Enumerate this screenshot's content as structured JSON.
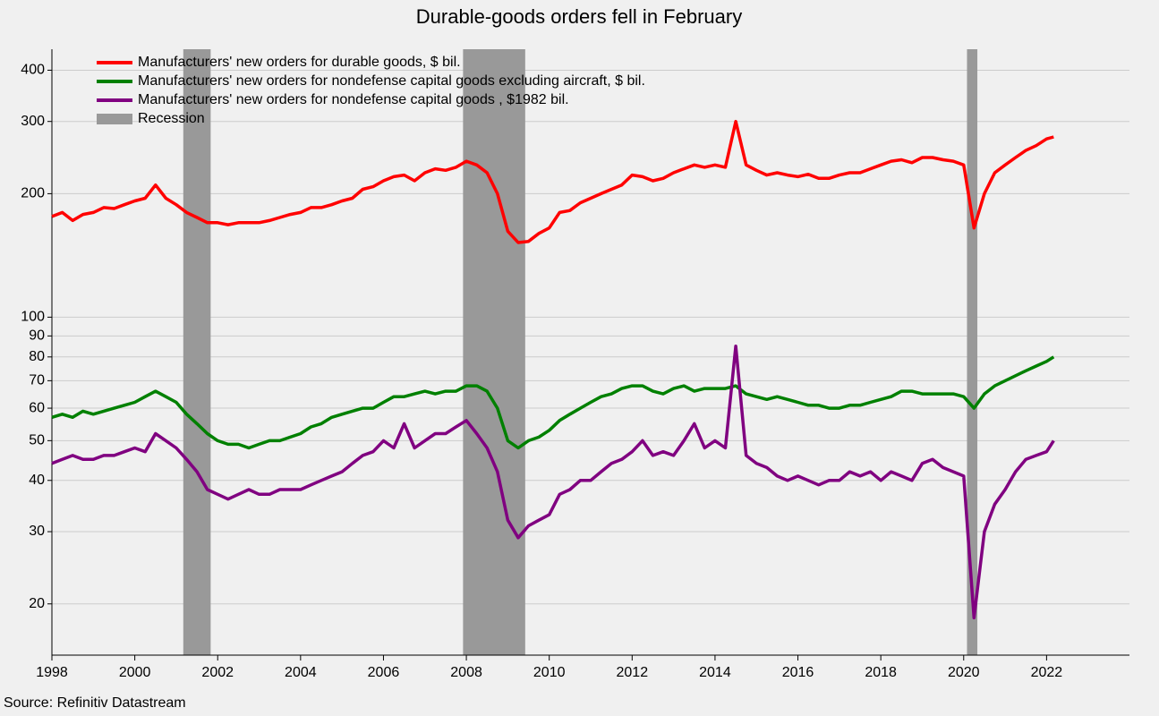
{
  "chart_data": {
    "type": "line",
    "title": "Durable-goods orders fell in February",
    "source": "Source: Refinitiv Datastream",
    "log_scale": true,
    "grid": true,
    "legend_position": "top-left",
    "xlim": [
      1998,
      2024
    ],
    "ylim": [
      15,
      450
    ],
    "xticks": [
      1998,
      2000,
      2002,
      2004,
      2006,
      2008,
      2010,
      2012,
      2014,
      2016,
      2018,
      2020,
      2022
    ],
    "yticks": [
      20,
      30,
      40,
      50,
      60,
      70,
      80,
      90,
      100,
      200,
      300,
      400
    ],
    "recession_label": "Recession",
    "recession_color": "#999999",
    "recessions": [
      [
        2001.17,
        2001.83
      ],
      [
        2007.92,
        2009.42
      ],
      [
        2020.08,
        2020.33
      ]
    ],
    "x": [
      1998,
      1998.25,
      1998.5,
      1998.75,
      1999,
      1999.25,
      1999.5,
      1999.75,
      2000,
      2000.25,
      2000.5,
      2000.75,
      2001,
      2001.25,
      2001.5,
      2001.75,
      2002,
      2002.25,
      2002.5,
      2002.75,
      2003,
      2003.25,
      2003.5,
      2003.75,
      2004,
      2004.25,
      2004.5,
      2004.75,
      2005,
      2005.25,
      2005.5,
      2005.75,
      2006,
      2006.25,
      2006.5,
      2006.75,
      2007,
      2007.25,
      2007.5,
      2007.75,
      2008,
      2008.25,
      2008.5,
      2008.75,
      2009,
      2009.25,
      2009.5,
      2009.75,
      2010,
      2010.25,
      2010.5,
      2010.75,
      2011,
      2011.25,
      2011.5,
      2011.75,
      2012,
      2012.25,
      2012.5,
      2012.75,
      2013,
      2013.25,
      2013.5,
      2013.75,
      2014,
      2014.25,
      2014.5,
      2014.75,
      2015,
      2015.25,
      2015.5,
      2015.75,
      2016,
      2016.25,
      2016.5,
      2016.75,
      2017,
      2017.25,
      2017.5,
      2017.75,
      2018,
      2018.25,
      2018.5,
      2018.75,
      2019,
      2019.25,
      2019.5,
      2019.75,
      2020,
      2020.25,
      2020.5,
      2020.75,
      2021,
      2021.25,
      2021.5,
      2021.75,
      2022,
      2022.17
    ],
    "series": [
      {
        "name": "Manufacturers' new orders for durable goods, $ bil.",
        "color": "#ff0000",
        "values": [
          176,
          180,
          172,
          178,
          180,
          185,
          184,
          188,
          192,
          195,
          210,
          195,
          188,
          180,
          175,
          170,
          170,
          168,
          170,
          170,
          170,
          172,
          175,
          178,
          180,
          185,
          185,
          188,
          192,
          195,
          205,
          208,
          215,
          220,
          222,
          215,
          225,
          230,
          228,
          232,
          240,
          235,
          225,
          200,
          162,
          152,
          153,
          160,
          165,
          180,
          182,
          190,
          195,
          200,
          205,
          210,
          222,
          220,
          215,
          218,
          225,
          230,
          235,
          232,
          235,
          232,
          300,
          235,
          228,
          222,
          225,
          222,
          220,
          223,
          218,
          218,
          222,
          225,
          225,
          230,
          235,
          240,
          242,
          238,
          245,
          245,
          242,
          240,
          235,
          165,
          200,
          225,
          235,
          245,
          255,
          262,
          272,
          275
        ]
      },
      {
        "name": "Manufacturers' new orders for nondefense capital goods excluding aircraft, $ bil.",
        "color": "#008000",
        "values": [
          57,
          58,
          57,
          59,
          58,
          59,
          60,
          61,
          62,
          64,
          66,
          64,
          62,
          58,
          55,
          52,
          50,
          49,
          49,
          48,
          49,
          50,
          50,
          51,
          52,
          54,
          55,
          57,
          58,
          59,
          60,
          60,
          62,
          64,
          64,
          65,
          66,
          65,
          66,
          66,
          68,
          68,
          66,
          60,
          50,
          48,
          50,
          51,
          53,
          56,
          58,
          60,
          62,
          64,
          65,
          67,
          68,
          68,
          66,
          65,
          67,
          68,
          66,
          67,
          67,
          67,
          68,
          65,
          64,
          63,
          64,
          63,
          62,
          61,
          61,
          60,
          60,
          61,
          61,
          62,
          63,
          64,
          66,
          66,
          65,
          65,
          65,
          65,
          64,
          60,
          65,
          68,
          70,
          72,
          74,
          76,
          78,
          80
        ]
      },
      {
        "name": "Manufacturers' new orders for nondefense capital goods , $1982 bil.",
        "color": "#800080",
        "values": [
          44,
          45,
          46,
          45,
          45,
          46,
          46,
          47,
          48,
          47,
          52,
          50,
          48,
          45,
          42,
          38,
          37,
          36,
          37,
          38,
          37,
          37,
          38,
          38,
          38,
          39,
          40,
          41,
          42,
          44,
          46,
          47,
          50,
          48,
          55,
          48,
          50,
          52,
          52,
          54,
          56,
          52,
          48,
          42,
          32,
          29,
          31,
          32,
          33,
          37,
          38,
          40,
          40,
          42,
          44,
          45,
          47,
          50,
          46,
          47,
          46,
          50,
          55,
          48,
          50,
          48,
          85,
          46,
          44,
          43,
          41,
          40,
          41,
          40,
          39,
          40,
          40,
          42,
          41,
          42,
          40,
          42,
          41,
          40,
          44,
          45,
          43,
          42,
          41,
          18.5,
          30,
          35,
          38,
          42,
          45,
          46,
          47,
          50
        ]
      }
    ]
  }
}
